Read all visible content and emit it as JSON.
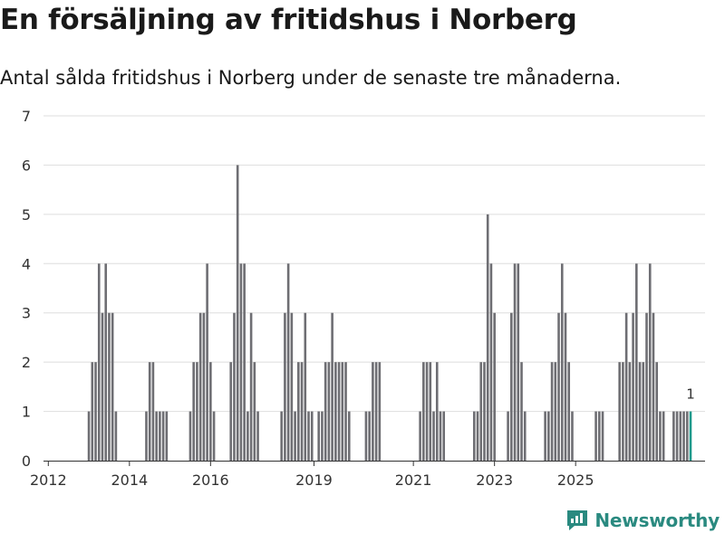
{
  "title": "En försäljning av fritidshus i Norberg",
  "subtitle": "Antal sålda fritidshus i Norberg under de senaste tre månaderna.",
  "brand": "Newsworthy",
  "colors": {
    "bar": "#6e6e73",
    "highlight": "#1e9a8c",
    "grid": "#dedede",
    "brand": "#2a8a80"
  },
  "chart_data": {
    "type": "bar",
    "title": "En försäljning av fritidshus i Norberg",
    "subtitle": "Antal sålda fritidshus i Norberg under de senaste tre månaderna.",
    "xlabel": "",
    "ylabel": "",
    "ylim": [
      0,
      7
    ],
    "yticks": [
      0,
      1,
      2,
      3,
      4,
      5,
      6,
      7
    ],
    "grid": true,
    "start_year": 2012,
    "end_year": 2025,
    "xtick_labels": [
      "2012",
      "2014",
      "2016",
      "2019",
      "2021",
      "2023",
      "2025"
    ],
    "xtick_positions": [
      2012.0,
      2014.0,
      2016.0,
      2018.55,
      2021.0,
      2023.0,
      2025.0
    ],
    "months_per_year": 12,
    "values": [
      0,
      0,
      0,
      0,
      0,
      0,
      0,
      0,
      0,
      0,
      0,
      0,
      1,
      2,
      2,
      4,
      3,
      4,
      3,
      3,
      1,
      0,
      0,
      0,
      0,
      0,
      0,
      0,
      0,
      1,
      2,
      2,
      1,
      1,
      1,
      1,
      0,
      0,
      0,
      0,
      0,
      0,
      1,
      2,
      2,
      3,
      3,
      4,
      2,
      1,
      0,
      0,
      0,
      0,
      2,
      3,
      6,
      4,
      4,
      1,
      3,
      2,
      1,
      0,
      0,
      0,
      0,
      0,
      0,
      1,
      3,
      4,
      3,
      1,
      2,
      2,
      3,
      1,
      1,
      0,
      1,
      1,
      2,
      2,
      3,
      2,
      2,
      2,
      2,
      1,
      0,
      0,
      0,
      0,
      1,
      1,
      2,
      2,
      2,
      0,
      0,
      0,
      0,
      0,
      0,
      0,
      0,
      0,
      0,
      0,
      1,
      2,
      2,
      2,
      1,
      2,
      1,
      1,
      0,
      0,
      0,
      0,
      0,
      0,
      0,
      0,
      1,
      1,
      2,
      2,
      5,
      4,
      3,
      0,
      0,
      0,
      1,
      3,
      4,
      4,
      2,
      1,
      0,
      0,
      0,
      0,
      0,
      1,
      1,
      2,
      2,
      3,
      4,
      3,
      2,
      1,
      0,
      0,
      0,
      0,
      0,
      0,
      1,
      1,
      1,
      0,
      0,
      0,
      0,
      2,
      2,
      3,
      2,
      3,
      4,
      2,
      2,
      3,
      4,
      3,
      2,
      1,
      1,
      0,
      0,
      1,
      1,
      1,
      1,
      1,
      1
    ],
    "highlight_index": 190,
    "annotation": {
      "index": 190,
      "label": "1"
    }
  }
}
